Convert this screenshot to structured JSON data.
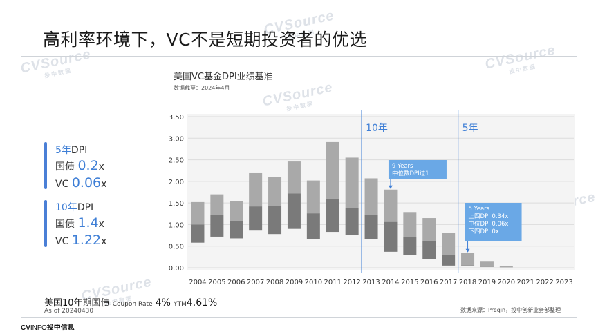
{
  "slide": {
    "title": "高利率环境下，VC不是短期投资者的优选"
  },
  "chart_title": "美国VC基金DPI业绩基准",
  "chart_subtitle": "数据截至：2024年4月",
  "watermark": {
    "main": "CVSource",
    "sub": "投中数据"
  },
  "kpis": {
    "five_year": {
      "label_num": "5年",
      "label_suffix": "DPI",
      "bond_label": "国债",
      "bond_value": "0.2",
      "bond_unit": "x",
      "vc_label": "VC",
      "vc_value": "0.06",
      "vc_unit": "x"
    },
    "ten_year": {
      "label_num": "10年",
      "label_suffix": "DPI",
      "bond_label": "国债",
      "bond_value": "1.4",
      "bond_unit": "x",
      "vc_label": "VC",
      "vc_value": "1.22",
      "vc_unit": "x"
    }
  },
  "bond_info": {
    "name": "美国10年期国债",
    "coupon_label": "Coupon Rate",
    "coupon_value": "4%",
    "ytm_label": "YTM",
    "ytm_value": "4.61%",
    "as_of": "As of 20240430"
  },
  "source": "数据来源：Preqin，投中创新业务部整理",
  "logo": {
    "a": "CV",
    "b": "INFO",
    "c": "投中信息"
  },
  "chart_data": {
    "type": "bar",
    "categories": [
      "2004",
      "2005",
      "2006",
      "2007",
      "2008",
      "2009",
      "2010",
      "2011",
      "2012",
      "2013",
      "2014",
      "2015",
      "2016",
      "2017",
      "2018",
      "2019",
      "2020",
      "2021",
      "2022",
      "2023"
    ],
    "series": [
      {
        "name": "",
        "description": "floating bar: bottom quartile to top quartile DPI",
        "low": [
          0.58,
          0.72,
          0.68,
          0.86,
          0.78,
          0.9,
          0.66,
          0.83,
          0.76,
          0.67,
          0.37,
          0.3,
          0.2,
          0.05,
          0.05,
          0.02,
          0.01,
          null,
          null,
          null
        ],
        "high": [
          1.52,
          1.7,
          1.54,
          2.19,
          2.1,
          2.46,
          2.02,
          2.91,
          2.55,
          2.07,
          1.81,
          1.29,
          1.15,
          0.81,
          0.34,
          0.14,
          0.04,
          null,
          null,
          null
        ]
      },
      {
        "name": "",
        "description": "median split (dark lower segment top)",
        "median": [
          1.0,
          1.23,
          1.08,
          1.42,
          1.43,
          1.72,
          1.26,
          1.6,
          1.38,
          1.22,
          1.06,
          0.71,
          0.62,
          0.29,
          0.06,
          0.03,
          0.01,
          null,
          null,
          null
        ]
      }
    ],
    "ylim": [
      0,
      3.5
    ],
    "yticks": [
      "0.00",
      "0.50",
      "1.00",
      "1.50",
      "2.00",
      "2.50",
      "3.00",
      "3.50"
    ],
    "grid": true,
    "colors": {
      "upper": "#a9a9a9",
      "lower": "#7a7a7a",
      "accent": "#3f7fd6",
      "callout": "#6aa8e6"
    },
    "vlines": [
      {
        "label": "10年",
        "after_category": "2012"
      },
      {
        "label": "5年",
        "after_category": "2017"
      }
    ],
    "callouts": [
      {
        "category": "2014",
        "lines": [
          "9 Years",
          "中位数DPI过1"
        ]
      },
      {
        "category": "2018",
        "lines": [
          "5 Years",
          "上四DPI 0.34x",
          "中位DPI 0.06x",
          "下四DPI 0x"
        ]
      }
    ]
  }
}
